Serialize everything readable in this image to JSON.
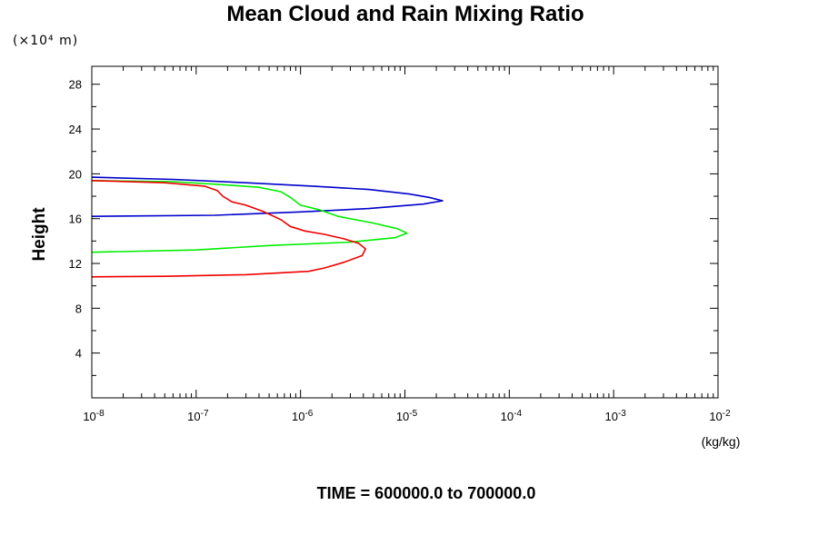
{
  "chart_data": {
    "type": "line",
    "title": "Mean Cloud and Rain Mixing Ratio",
    "y_scale_note": "(×10⁴ m)",
    "ylabel": "Height",
    "xlabel": "(kg/kg)",
    "footer": "TIME = 600000.0 to 700000.0",
    "x_scale": "log",
    "xlim": [
      1e-08,
      0.01
    ],
    "ylim": [
      0,
      29.6
    ],
    "x_ticks": [
      {
        "base": "10",
        "exp": "-8",
        "value": 1e-08
      },
      {
        "base": "10",
        "exp": "-7",
        "value": 1e-07
      },
      {
        "base": "10",
        "exp": "-6",
        "value": 1e-06
      },
      {
        "base": "10",
        "exp": "-5",
        "value": 1e-05
      },
      {
        "base": "10",
        "exp": "-4",
        "value": 0.0001
      },
      {
        "base": "10",
        "exp": "-3",
        "value": 0.001
      },
      {
        "base": "10",
        "exp": "-2",
        "value": 0.01
      }
    ],
    "y_ticks": [
      {
        "label": "4",
        "value": 4
      },
      {
        "label": "8",
        "value": 8
      },
      {
        "label": "12",
        "value": 12
      },
      {
        "label": "16",
        "value": 16
      },
      {
        "label": "20",
        "value": 20
      },
      {
        "label": "24",
        "value": 24
      },
      {
        "label": "28",
        "value": 28
      }
    ],
    "grid": false,
    "series": [
      {
        "color": "#0000cc",
        "points": [
          [
            1e-08,
            19.7
          ],
          [
            6e-08,
            19.5
          ],
          [
            3e-07,
            19.2
          ],
          [
            1.3e-06,
            18.9
          ],
          [
            4.5e-06,
            18.6
          ],
          [
            1.1e-05,
            18.2
          ],
          [
            1.7e-05,
            17.9
          ],
          [
            2.3e-05,
            17.6
          ],
          [
            1.5e-05,
            17.3
          ],
          [
            4.5e-06,
            16.9
          ],
          [
            1e-06,
            16.6
          ],
          [
            1.5e-07,
            16.3
          ],
          [
            1e-08,
            16.2
          ]
        ]
      },
      {
        "color": "#00ee00",
        "points": [
          [
            1e-08,
            19.4
          ],
          [
            6e-08,
            19.3
          ],
          [
            2e-07,
            19.0
          ],
          [
            4e-07,
            18.8
          ],
          [
            6.5e-07,
            18.4
          ],
          [
            8e-07,
            17.9
          ],
          [
            1e-06,
            17.2
          ],
          [
            1.5e-06,
            16.8
          ],
          [
            2.3e-06,
            16.2
          ],
          [
            5e-06,
            15.6
          ],
          [
            8.5e-06,
            15.1
          ],
          [
            1.05e-05,
            14.7
          ],
          [
            8e-06,
            14.3
          ],
          [
            3e-06,
            13.9
          ],
          [
            5e-07,
            13.6
          ],
          [
            1e-07,
            13.2
          ],
          [
            1e-08,
            13.0
          ]
        ]
      },
      {
        "color": "#ee0000",
        "points": [
          [
            1e-08,
            19.4
          ],
          [
            5e-08,
            19.2
          ],
          [
            1.2e-07,
            18.9
          ],
          [
            1.6e-07,
            18.5
          ],
          [
            1.8e-07,
            18.0
          ],
          [
            2.2e-07,
            17.5
          ],
          [
            3e-07,
            17.2
          ],
          [
            4.5e-07,
            16.6
          ],
          [
            6.5e-07,
            15.9
          ],
          [
            8e-07,
            15.3
          ],
          [
            1.1e-06,
            14.9
          ],
          [
            1.7e-06,
            14.6
          ],
          [
            2.6e-06,
            14.2
          ],
          [
            3.6e-06,
            13.8
          ],
          [
            4.2e-06,
            13.3
          ],
          [
            3.9e-06,
            12.7
          ],
          [
            2.6e-06,
            12.1
          ],
          [
            1.7e-06,
            11.6
          ],
          [
            1.2e-06,
            11.3
          ],
          [
            3e-07,
            11.0
          ],
          [
            5e-08,
            10.85
          ],
          [
            1e-08,
            10.8
          ]
        ]
      }
    ]
  }
}
